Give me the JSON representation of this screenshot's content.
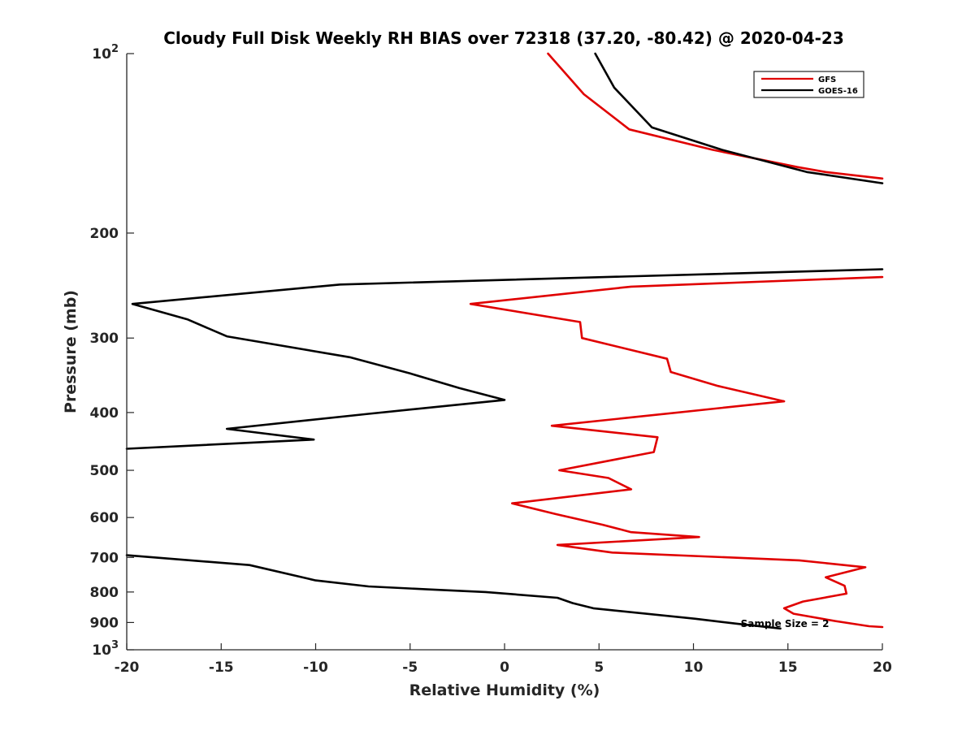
{
  "chart_data": {
    "type": "line",
    "title": "Cloudy Full Disk Weekly RH BIAS over 72318 (37.20, -80.42) @ 2020-04-23",
    "xlabel": "Relative Humidity (%)",
    "ylabel": "Pressure (mb)",
    "xlim": [
      -20,
      20
    ],
    "ylim": [
      100,
      1000
    ],
    "y_scale": "log",
    "y_reversed": true,
    "grid": false,
    "legend_position": "top-right",
    "x_ticks": [
      "-20",
      "-15",
      "-10",
      "-5",
      "0",
      "5",
      "10",
      "15",
      "20"
    ],
    "x_tick_values": [
      -20,
      -15,
      -10,
      -5,
      0,
      5,
      10,
      15,
      20
    ],
    "y_ticks": [
      {
        "value": 100,
        "base": "10",
        "exp": "2"
      },
      {
        "value": 200,
        "label": "200"
      },
      {
        "value": 300,
        "label": "300"
      },
      {
        "value": 400,
        "label": "400"
      },
      {
        "value": 500,
        "label": "500"
      },
      {
        "value": 600,
        "label": "600"
      },
      {
        "value": 700,
        "label": "700"
      },
      {
        "value": 800,
        "label": "800"
      },
      {
        "value": 900,
        "label": "900"
      },
      {
        "value": 1000,
        "base": "10",
        "exp": "3"
      }
    ],
    "annotation": {
      "text": "Sample Size = 2",
      "x": 12.5,
      "p": 905
    },
    "series": [
      {
        "name": "GFS",
        "color": "#e00000",
        "segments": [
          [
            [
              2.3,
              100
            ],
            [
              4.2,
              117
            ],
            [
              6.6,
              134
            ],
            [
              11.0,
              145
            ],
            [
              15.5,
              155
            ],
            [
              17.0,
              158
            ],
            [
              20.0,
              162
            ]
          ],
          [
            [
              20.0,
              237
            ],
            [
              6.7,
              246
            ],
            [
              -1.8,
              263
            ],
            [
              4.0,
              282
            ],
            [
              4.1,
              300
            ],
            [
              8.6,
              325
            ],
            [
              8.8,
              342
            ],
            [
              11.3,
              361
            ],
            [
              14.8,
              383
            ],
            [
              2.5,
              421
            ],
            [
              8.1,
              440
            ],
            [
              7.9,
              466
            ],
            [
              2.9,
              500
            ],
            [
              5.5,
              515
            ],
            [
              6.7,
              538
            ],
            [
              0.4,
              568
            ],
            [
              2.7,
              592
            ],
            [
              5.2,
              617
            ],
            [
              6.7,
              635
            ],
            [
              10.3,
              647
            ],
            [
              2.8,
              667
            ],
            [
              5.7,
              687
            ],
            [
              15.6,
              708
            ],
            [
              19.1,
              727
            ],
            [
              17.0,
              756
            ],
            [
              18.0,
              781
            ],
            [
              18.1,
              805
            ],
            [
              15.8,
              830
            ],
            [
              14.8,
              852
            ],
            [
              15.3,
              870
            ],
            [
              17.5,
              895
            ],
            [
              19.3,
              913
            ],
            [
              20.0,
              916
            ]
          ]
        ]
      },
      {
        "name": "GOES-16",
        "color": "#000000",
        "segments": [
          [
            [
              4.8,
              100
            ],
            [
              5.8,
              114
            ],
            [
              7.8,
              133
            ],
            [
              11.5,
              145
            ],
            [
              16.0,
              158
            ],
            [
              20.0,
              165
            ]
          ],
          [
            [
              20.0,
              230
            ],
            [
              -8.7,
              244
            ],
            [
              -19.7,
              263
            ],
            [
              -16.8,
              279
            ],
            [
              -14.7,
              298
            ],
            [
              -8.2,
              323
            ],
            [
              -5.0,
              344
            ],
            [
              -2.4,
              364
            ],
            [
              0.0,
              381
            ],
            [
              -7.2,
              402
            ],
            [
              -14.7,
              426
            ],
            [
              -10.1,
              444
            ],
            [
              -20.0,
              460
            ]
          ],
          [
            [
              -20.0,
              694
            ],
            [
              -13.5,
              721
            ],
            [
              -10.0,
              765
            ],
            [
              -7.2,
              783
            ],
            [
              -4.0,
              792
            ],
            [
              -1.0,
              800
            ],
            [
              2.8,
              818
            ],
            [
              3.6,
              835
            ],
            [
              4.7,
              852
            ],
            [
              10.1,
              887
            ],
            [
              12.4,
              905
            ],
            [
              14.6,
              921
            ]
          ]
        ]
      }
    ]
  }
}
